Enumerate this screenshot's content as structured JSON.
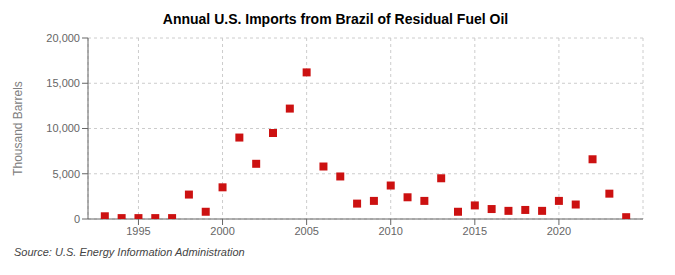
{
  "chart_data": {
    "type": "scatter",
    "title": "Annual U.S. Imports from Brazil of Residual Fuel Oil",
    "ylabel": "Thousand Barrels",
    "annotations": [
      "Source: U.S. Energy Information Administration"
    ],
    "x": [
      1993,
      1994,
      1995,
      1996,
      1997,
      1998,
      1999,
      2000,
      2001,
      2002,
      2003,
      2004,
      2005,
      2006,
      2007,
      2008,
      2009,
      2010,
      2011,
      2012,
      2013,
      2014,
      2015,
      2016,
      2017,
      2018,
      2019,
      2020,
      2021,
      2022,
      2023,
      2024
    ],
    "values": [
      300,
      100,
      100,
      100,
      100,
      2700,
      800,
      3500,
      9000,
      6100,
      9500,
      12200,
      16200,
      5800,
      4700,
      1700,
      2000,
      3700,
      2400,
      2000,
      4500,
      800,
      1500,
      1100,
      900,
      1000,
      900,
      2000,
      1600,
      6600,
      2800,
      200
    ],
    "color": "#cc1111",
    "marker": "square",
    "xlim": [
      1992,
      2025
    ],
    "xticks": [
      1995,
      2000,
      2005,
      2010,
      2015,
      2020
    ],
    "ylim": [
      0,
      20000
    ],
    "yticks": [
      {
        "value": 0,
        "label": "0"
      },
      {
        "value": 5000,
        "label": "5,000"
      },
      {
        "value": 10000,
        "label": "10,000"
      },
      {
        "value": 15000,
        "label": "15,000"
      },
      {
        "value": 20000,
        "label": "20,000"
      }
    ],
    "grid": true
  }
}
